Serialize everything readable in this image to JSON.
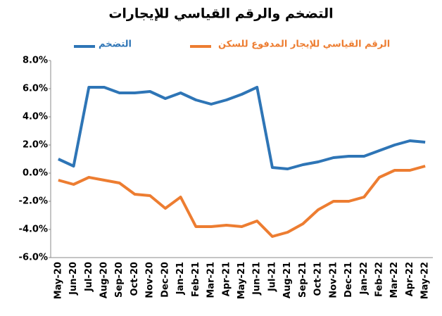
{
  "chart_data": {
    "type": "line",
    "title": "التضخم والرقم القياسي للإيجارات",
    "categories": [
      "May-20",
      "Jun-20",
      "Jul-20",
      "Aug-20",
      "Sep-20",
      "Oct-20",
      "Nov-20",
      "Dec-20",
      "Jan-21",
      "Feb-21",
      "Mar-21",
      "Apr-21",
      "May-21",
      "Jun-21",
      "Jul-21",
      "Aug-21",
      "Sep-21",
      "Oct-21",
      "Nov-21",
      "Dec-21",
      "Jan-22",
      "Feb-22",
      "Mar-22",
      "Apr-22",
      "May-22"
    ],
    "series": [
      {
        "name": "التضخم",
        "color": "#2e75b6",
        "values": [
          1.0,
          0.5,
          6.1,
          6.1,
          5.7,
          5.7,
          5.8,
          5.3,
          5.7,
          5.2,
          4.9,
          5.2,
          5.6,
          6.1,
          0.4,
          0.3,
          0.6,
          0.8,
          1.1,
          1.2,
          1.2,
          1.6,
          2.0,
          2.3,
          2.2
        ]
      },
      {
        "name": "الرقم القياسي للإيجار المدفوع للسكن",
        "color": "#ed7d31",
        "values": [
          -0.5,
          -0.8,
          -0.3,
          -0.5,
          -0.7,
          -1.5,
          -1.6,
          -2.5,
          -1.7,
          -3.8,
          -3.8,
          -3.7,
          -3.8,
          -3.4,
          -4.5,
          -4.2,
          -3.6,
          -2.6,
          -2.0,
          -2.0,
          -1.7,
          -0.3,
          0.2,
          0.2,
          0.5
        ]
      }
    ],
    "ylim": [
      -6,
      8
    ],
    "yticks": [
      {
        "value": -6,
        "label": "-6.0%"
      },
      {
        "value": -4,
        "label": "-4.0%"
      },
      {
        "value": -2,
        "label": "-2.0%"
      },
      {
        "value": 0,
        "label": "0.0%"
      },
      {
        "value": 2,
        "label": "2.0%"
      },
      {
        "value": 4,
        "label": "4.0%"
      },
      {
        "value": 6,
        "label": "6.0%"
      },
      {
        "value": 8,
        "label": "8.0%"
      }
    ],
    "grid": false
  }
}
